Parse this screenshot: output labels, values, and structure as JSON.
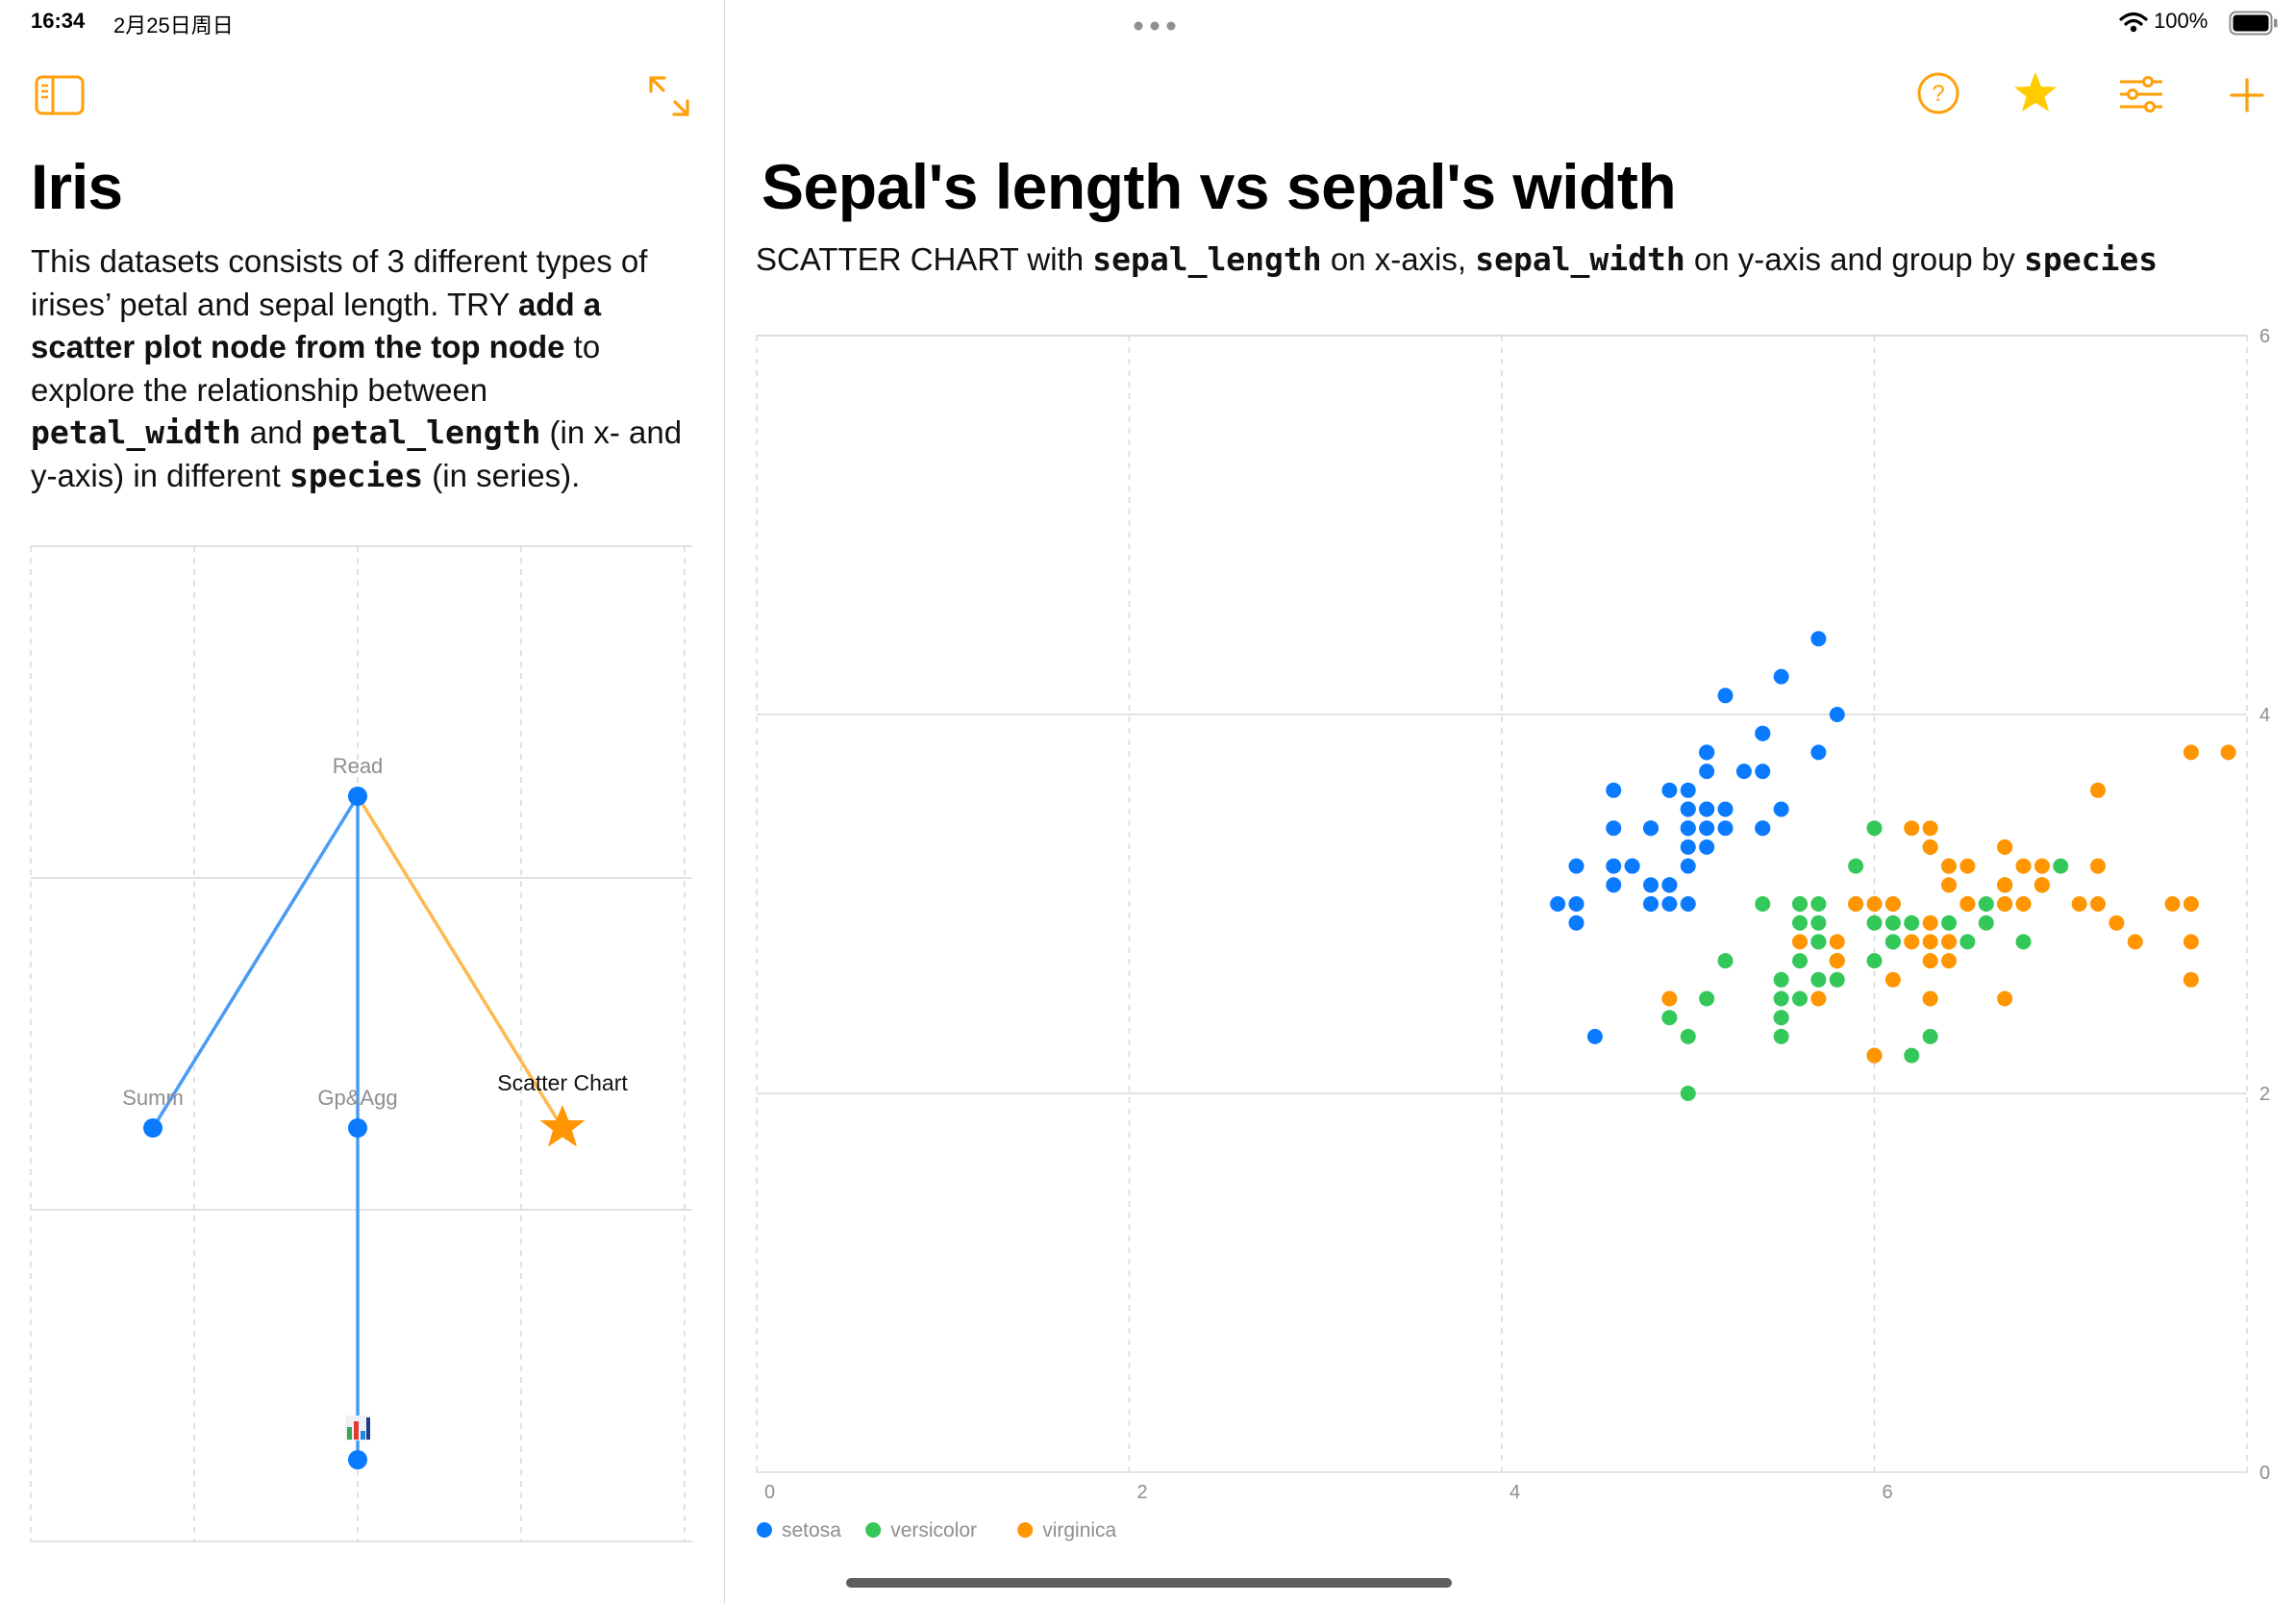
{
  "status_bar": {
    "time": "16:34",
    "date": "2月25日周日",
    "battery": "100%"
  },
  "colors": {
    "accent": "#FF9F0A",
    "setosa": "#0A7AFF",
    "versicolor": "#34C759",
    "virginica": "#FF9500",
    "edge_blue": "#4A9BF5",
    "edge_orange": "#FFB84D",
    "grid": "#d8d8d8"
  },
  "sidebar": {
    "icons": [
      "sidebar-toggle-icon",
      "expand-arrows-icon"
    ],
    "title": "Iris",
    "description": {
      "p1": "This datasets consists of 3 different types of irises’ petal and sepal length. TRY ",
      "bold": "add a scatter plot node from the top node",
      "p2": " to explore the relationship between ",
      "code1": "petal_width",
      "p3": " and ",
      "code2": "petal_length",
      "p4": " (in x- and y-axis) in different ",
      "code3": "species",
      "p5": " (in series)."
    },
    "graph": {
      "nodes": [
        {
          "id": "read",
          "label": "Read"
        },
        {
          "id": "summ",
          "label": "Summ"
        },
        {
          "id": "gpagg",
          "label": "Gp&Agg"
        },
        {
          "id": "scatter",
          "label": "Scatter Chart"
        },
        {
          "id": "bar",
          "label": ""
        }
      ]
    }
  },
  "toolbar": {
    "icons": [
      "help-icon",
      "star-icon",
      "sliders-icon",
      "plus-icon"
    ]
  },
  "main": {
    "title": "Sepal's length vs sepal's width",
    "subtitle": {
      "t1": "SCATTER CHART with ",
      "c1": "sepal_length",
      "t2": " on x-axis, ",
      "c2": "sepal_width",
      "t3": " on y-axis and group by ",
      "c3": "species"
    }
  },
  "chart_data": {
    "type": "scatter",
    "xlim": [
      0,
      8
    ],
    "ylim": [
      0,
      6
    ],
    "x_ticks": [
      "0",
      "2",
      "4",
      "6"
    ],
    "y_ticks": [
      "0",
      "2",
      "4",
      "6"
    ],
    "grid": true,
    "legend": "bottom-left",
    "series": [
      {
        "name": "setosa",
        "points": [
          [
            5.1,
            3.5
          ],
          [
            4.9,
            3.0
          ],
          [
            4.7,
            3.2
          ],
          [
            4.6,
            3.1
          ],
          [
            5.0,
            3.6
          ],
          [
            5.4,
            3.9
          ],
          [
            4.6,
            3.4
          ],
          [
            5.0,
            3.4
          ],
          [
            4.4,
            2.9
          ],
          [
            4.9,
            3.1
          ],
          [
            5.4,
            3.7
          ],
          [
            4.8,
            3.4
          ],
          [
            4.8,
            3.0
          ],
          [
            4.3,
            3.0
          ],
          [
            5.8,
            4.0
          ],
          [
            5.7,
            4.4
          ],
          [
            5.4,
            3.9
          ],
          [
            5.1,
            3.5
          ],
          [
            5.7,
            3.8
          ],
          [
            5.1,
            3.8
          ],
          [
            5.4,
            3.4
          ],
          [
            5.1,
            3.7
          ],
          [
            4.6,
            3.6
          ],
          [
            5.1,
            3.3
          ],
          [
            4.8,
            3.4
          ],
          [
            5.0,
            3.0
          ],
          [
            5.0,
            3.4
          ],
          [
            5.2,
            3.5
          ],
          [
            5.2,
            3.4
          ],
          [
            4.7,
            3.2
          ],
          [
            4.8,
            3.1
          ],
          [
            5.4,
            3.4
          ],
          [
            5.2,
            4.1
          ],
          [
            5.5,
            4.2
          ],
          [
            4.9,
            3.1
          ],
          [
            5.0,
            3.2
          ],
          [
            5.5,
            3.5
          ],
          [
            4.9,
            3.6
          ],
          [
            4.4,
            3.0
          ],
          [
            5.1,
            3.4
          ],
          [
            5.0,
            3.5
          ],
          [
            4.5,
            2.3
          ],
          [
            4.4,
            3.2
          ],
          [
            5.0,
            3.5
          ],
          [
            5.1,
            3.8
          ],
          [
            4.8,
            3.0
          ],
          [
            5.1,
            3.8
          ],
          [
            4.6,
            3.2
          ],
          [
            5.3,
            3.7
          ],
          [
            5.0,
            3.3
          ]
        ]
      },
      {
        "name": "versicolor",
        "points": [
          [
            7.0,
            3.2
          ],
          [
            6.4,
            3.2
          ],
          [
            6.9,
            3.1
          ],
          [
            5.5,
            2.3
          ],
          [
            6.5,
            2.8
          ],
          [
            5.7,
            2.8
          ],
          [
            6.3,
            3.3
          ],
          [
            4.9,
            2.4
          ],
          [
            6.6,
            2.9
          ],
          [
            5.2,
            2.7
          ],
          [
            5.0,
            2.0
          ],
          [
            5.9,
            3.0
          ],
          [
            6.0,
            2.2
          ],
          [
            6.1,
            2.9
          ],
          [
            5.6,
            2.9
          ],
          [
            6.7,
            3.1
          ],
          [
            5.6,
            3.0
          ],
          [
            5.8,
            2.7
          ],
          [
            6.2,
            2.2
          ],
          [
            5.6,
            2.5
          ],
          [
            5.9,
            3.2
          ],
          [
            6.1,
            2.8
          ],
          [
            6.3,
            2.5
          ],
          [
            6.1,
            2.8
          ],
          [
            6.4,
            2.9
          ],
          [
            6.6,
            3.0
          ],
          [
            6.8,
            2.8
          ],
          [
            6.7,
            3.0
          ],
          [
            6.0,
            2.9
          ],
          [
            5.7,
            2.6
          ],
          [
            5.5,
            2.4
          ],
          [
            5.5,
            2.4
          ],
          [
            5.8,
            2.7
          ],
          [
            6.0,
            2.7
          ],
          [
            5.4,
            3.0
          ],
          [
            6.0,
            3.4
          ],
          [
            6.7,
            3.1
          ],
          [
            6.3,
            2.3
          ],
          [
            5.6,
            3.0
          ],
          [
            5.5,
            2.5
          ],
          [
            5.5,
            2.6
          ],
          [
            6.1,
            3.0
          ],
          [
            5.8,
            2.6
          ],
          [
            5.0,
            2.3
          ],
          [
            5.6,
            2.7
          ],
          [
            5.7,
            3.0
          ],
          [
            5.7,
            2.9
          ],
          [
            6.2,
            2.9
          ],
          [
            5.1,
            2.5
          ],
          [
            5.7,
            2.8
          ]
        ]
      },
      {
        "name": "virginica",
        "points": [
          [
            6.3,
            3.3
          ],
          [
            5.8,
            2.7
          ],
          [
            7.1,
            3.0
          ],
          [
            6.3,
            2.9
          ],
          [
            6.5,
            3.0
          ],
          [
            7.6,
            3.0
          ],
          [
            4.9,
            2.5
          ],
          [
            7.3,
            2.9
          ],
          [
            6.7,
            2.5
          ],
          [
            7.2,
            3.6
          ],
          [
            6.5,
            3.2
          ],
          [
            6.4,
            2.7
          ],
          [
            6.8,
            3.0
          ],
          [
            5.7,
            2.5
          ],
          [
            5.8,
            2.8
          ],
          [
            6.4,
            3.2
          ],
          [
            6.5,
            3.0
          ],
          [
            7.7,
            3.8
          ],
          [
            7.7,
            2.6
          ],
          [
            6.0,
            2.2
          ],
          [
            6.9,
            3.2
          ],
          [
            5.6,
            2.8
          ],
          [
            7.7,
            2.8
          ],
          [
            6.3,
            2.7
          ],
          [
            6.7,
            3.3
          ],
          [
            7.2,
            3.2
          ],
          [
            6.2,
            2.8
          ],
          [
            6.1,
            3.0
          ],
          [
            6.4,
            2.8
          ],
          [
            7.2,
            3.0
          ],
          [
            7.4,
            2.8
          ],
          [
            7.9,
            3.8
          ],
          [
            6.4,
            2.8
          ],
          [
            6.3,
            2.8
          ],
          [
            6.1,
            2.6
          ],
          [
            7.7,
            3.0
          ],
          [
            6.3,
            3.4
          ],
          [
            6.4,
            3.1
          ],
          [
            6.0,
            3.0
          ],
          [
            6.9,
            3.1
          ],
          [
            6.7,
            3.1
          ],
          [
            6.9,
            3.1
          ],
          [
            5.8,
            2.7
          ],
          [
            6.8,
            3.2
          ],
          [
            6.7,
            3.3
          ],
          [
            6.7,
            3.0
          ],
          [
            6.3,
            2.5
          ],
          [
            6.5,
            3.0
          ],
          [
            6.2,
            3.4
          ],
          [
            5.9,
            3.0
          ]
        ]
      }
    ]
  }
}
